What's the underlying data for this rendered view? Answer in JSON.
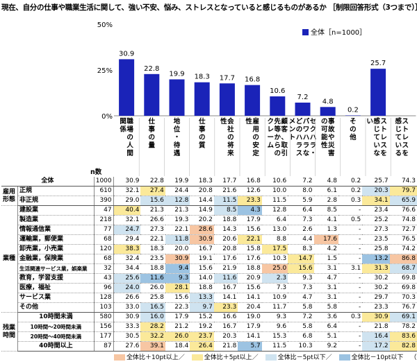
{
  "title": "現在、自分の仕事や職業生活に関して、強い不安、悩み、ストレスとなっていると感じるものがあるか ［制限回答形式（3つまで）］",
  "colors": {
    "bar": "#1a23b8",
    "hi10": "#f7c6a3",
    "hi5": "#fbe99a",
    "lo5": "#cfe3f0",
    "lo10": "#9cc3e2"
  },
  "chart_data": {
    "type": "bar",
    "title": "",
    "xlabel": "",
    "ylabel": "",
    "ylim": [
      0,
      50
    ],
    "yticks": [
      "0%",
      "25%",
      "50%"
    ],
    "grid": false,
    "legend": {
      "position": "top-right",
      "label": "全体［n=1000］"
    },
    "categories": [
      "職場の人間関係",
      "仕事の量",
      "地位・待遇",
      "仕事の質",
      "会社の将来性",
      "雇用の安定性",
      "顧客、取引先等からのクレーム",
      "セクハラ・パワハラなどのハラスメント",
      "事故や災害の可能性",
      "その他",
      "ストレスを感じていない",
      "ストレスを感じている"
    ],
    "series": [
      {
        "name": "全体［n=1000］",
        "values": [
          30.9,
          22.8,
          19.9,
          18.3,
          17.7,
          16.8,
          10.6,
          7.2,
          4.8,
          0.2,
          25.7,
          null
        ]
      }
    ]
  },
  "table": {
    "n_header": "n数",
    "categories": [
      "職場の人間関係",
      "仕事の量",
      "地位・待遇",
      "仕事の質",
      "会社の将来性",
      "雇用の安定性",
      "顧客、取引先等からのクレーム",
      "セクハラ・パワハラなどのハラスメント",
      "事故や災害の可能性",
      "その他",
      "ストレスを感じていない",
      "ストレスを感じている"
    ],
    "groups": [
      {
        "name": "",
        "rows": [
          {
            "label": "全体",
            "n": "1000",
            "values": [
              "30.9",
              "22.8",
              "19.9",
              "18.3",
              "17.7",
              "16.8",
              "10.6",
              "7.2",
              "4.8",
              "0.2",
              "25.7",
              "74.3"
            ],
            "hl": [
              "",
              "",
              "",
              "",
              "",
              "",
              "",
              "",
              "",
              "",
              "",
              ""
            ]
          }
        ]
      },
      {
        "name": "雇用形態",
        "rows": [
          {
            "label": "正規",
            "n": "610",
            "values": [
              "32.1",
              "27.4",
              "24.4",
              "20.8",
              "21.6",
              "12.6",
              "10.0",
              "8.0",
              "6.1",
              "0.2",
              "20.3",
              "79.7"
            ],
            "hl": [
              "",
              "hi5",
              "",
              "",
              "",
              "",
              "",
              "",
              "",
              "",
              "lo5",
              "hi5"
            ]
          },
          {
            "label": "非正規",
            "n": "390",
            "values": [
              "29.0",
              "15.6",
              "12.8",
              "14.4",
              "11.5",
              "23.3",
              "11.5",
              "5.9",
              "2.8",
              "0.3",
              "34.1",
              "65.9"
            ],
            "hl": [
              "",
              "lo5",
              "lo5",
              "",
              "lo5",
              "hi5",
              "",
              "",
              "",
              "",
              "hi5",
              "lo5"
            ]
          }
        ]
      },
      {
        "name": "業種",
        "rows": [
          {
            "label": "建設業",
            "n": "47",
            "values": [
              "40.4",
              "21.3",
              "21.3",
              "14.9",
              "8.5",
              "4.3",
              "12.8",
              "6.4",
              "8.5",
              "-",
              "23.4",
              "76.6"
            ],
            "hl": [
              "hi5",
              "",
              "",
              "",
              "lo5",
              "lo10",
              "",
              "",
              "",
              "",
              "",
              ""
            ]
          },
          {
            "label": "製造業",
            "n": "218",
            "values": [
              "32.1",
              "26.6",
              "19.3",
              "20.2",
              "18.8",
              "17.9",
              "6.4",
              "7.3",
              "4.1",
              "0.5",
              "25.2",
              "74.8"
            ],
            "hl": [
              "",
              "",
              "",
              "",
              "",
              "",
              "",
              "",
              "",
              "",
              "",
              ""
            ]
          },
          {
            "label": "情報通信業",
            "n": "77",
            "values": [
              "24.7",
              "27.3",
              "22.1",
              "28.6",
              "14.3",
              "15.6",
              "13.0",
              "2.6",
              "1.3",
              "-",
              "27.3",
              "72.7"
            ],
            "hl": [
              "lo5",
              "",
              "",
              "hi10",
              "",
              "",
              "",
              "",
              "",
              "",
              "",
              ""
            ]
          },
          {
            "label": "運輸業，郵便業",
            "n": "68",
            "values": [
              "29.4",
              "22.1",
              "11.8",
              "30.9",
              "20.6",
              "22.1",
              "8.8",
              "4.4",
              "17.6",
              "-",
              "23.5",
              "76.5"
            ],
            "hl": [
              "",
              "",
              "lo5",
              "hi10",
              "",
              "hi5",
              "",
              "",
              "hi10",
              "",
              "",
              ""
            ]
          },
          {
            "label": "卸売業，小売業",
            "n": "120",
            "values": [
              "38.3",
              "18.3",
              "20.0",
              "16.7",
              "20.8",
              "15.8",
              "17.5",
              "8.3",
              "4.2",
              "-",
              "25.8",
              "74.2"
            ],
            "hl": [
              "hi5",
              "",
              "",
              "",
              "",
              "",
              "hi5",
              "",
              "",
              "",
              "",
              ""
            ]
          },
          {
            "label": "金融業，保険業",
            "n": "68",
            "values": [
              "32.4",
              "23.5",
              "30.9",
              "19.1",
              "17.6",
              "17.6",
              "10.3",
              "14.7",
              "1.5",
              "-",
              "13.2",
              "86.8"
            ],
            "hl": [
              "",
              "",
              "hi10",
              "",
              "",
              "",
              "",
              "hi5",
              "",
              "",
              "lo10",
              "hi10"
            ]
          },
          {
            "label": "生活関連サービス業，娯楽業",
            "n": "32",
            "values": [
              "34.4",
              "18.8",
              "9.4",
              "15.6",
              "21.9",
              "18.8",
              "25.0",
              "15.6",
              "3.1",
              "3.1",
              "31.3",
              "68.7"
            ],
            "hl": [
              "",
              "",
              "lo10",
              "",
              "",
              "",
              "hi10",
              "hi5",
              "",
              "",
              "hi5",
              "lo5"
            ]
          },
          {
            "label": "教育，学習支援",
            "n": "43",
            "values": [
              "25.6",
              "11.6",
              "9.3",
              "14.0",
              "11.6",
              "20.9",
              "2.3",
              "9.3",
              "4.7",
              "-",
              "30.2",
              "69.8"
            ],
            "hl": [
              "lo5",
              "lo10",
              "lo10",
              "",
              "lo5",
              "",
              "lo5",
              "",
              "",
              "",
              "",
              ""
            ]
          },
          {
            "label": "医療，福祉",
            "n": "96",
            "values": [
              "24.0",
              "26.0",
              "28.1",
              "18.8",
              "16.7",
              "15.6",
              "7.3",
              "7.3",
              "3.1",
              "-",
              "30.2",
              "69.8"
            ],
            "hl": [
              "lo5",
              "",
              "hi5",
              "",
              "",
              "",
              "",
              "",
              "",
              "",
              "",
              ""
            ]
          },
          {
            "label": "サービス業",
            "n": "128",
            "values": [
              "26.6",
              "25.8",
              "15.6",
              "13.3",
              "14.1",
              "14.1",
              "10.9",
              "4.7",
              "3.1",
              "-",
              "29.7",
              "70.3"
            ],
            "hl": [
              "",
              "",
              "",
              "lo5",
              "",
              "",
              "",
              "",
              "",
              "",
              "",
              ""
            ]
          },
          {
            "label": "その他",
            "n": "103",
            "values": [
              "33.0",
              "16.5",
              "22.3",
              "9.7",
              "23.3",
              "20.4",
              "11.7",
              "5.8",
              "5.8",
              "-",
              "23.3",
              "76.7"
            ],
            "hl": [
              "",
              "lo5",
              "",
              "lo5",
              "hi5",
              "",
              "",
              "",
              "",
              "",
              "",
              ""
            ]
          }
        ]
      },
      {
        "name": "残業時間",
        "rows": [
          {
            "label": "10時間未満",
            "n": "580",
            "values": [
              "30.9",
              "16.0",
              "17.9",
              "15.2",
              "16.6",
              "19.0",
              "9.3",
              "7.2",
              "3.6",
              "0.3",
              "30.9",
              "69.1"
            ],
            "hl": [
              "",
              "lo5",
              "",
              "",
              "",
              "",
              "",
              "",
              "",
              "",
              "hi5",
              "lo5"
            ]
          },
          {
            "label": "10時間～20時間未満",
            "n": "156",
            "values": [
              "33.3",
              "28.2",
              "21.2",
              "19.2",
              "16.7",
              "17.9",
              "9.6",
              "5.8",
              "6.4",
              "-",
              "21.8",
              "78.2"
            ],
            "hl": [
              "",
              "hi5",
              "",
              "",
              "",
              "",
              "",
              "",
              "",
              "",
              "",
              ""
            ]
          },
          {
            "label": "20時間～40時間未満",
            "n": "177",
            "values": [
              "30.5",
              "32.2",
              "26.0",
              "23.7",
              "20.3",
              "14.1",
              "15.3",
              "6.8",
              "5.1",
              "-",
              "16.4",
              "83.6"
            ],
            "hl": [
              "",
              "hi5",
              "hi5",
              "hi5",
              "",
              "",
              "",
              "",
              "",
              "",
              "lo5",
              "hi5"
            ]
          },
          {
            "label": "40時間以上",
            "n": "87",
            "values": [
              "27.6",
              "39.1",
              "18.4",
              "26.4",
              "21.8",
              "5.7",
              "11.5",
              "10.3",
              "9.2",
              "-",
              "17.2",
              "82.8"
            ],
            "hl": [
              "",
              "hi10",
              "",
              "hi5",
              "",
              "lo10",
              "",
              "",
              "",
              "",
              "lo5",
              "hi5"
            ]
          }
        ]
      }
    ]
  },
  "legend_bottom": {
    "hi10": "全体比＋10pt以上／",
    "hi5": "全体比＋5pt以上／",
    "lo5": "全体比－5pt以下／",
    "lo10": "全体比－10pt以下",
    "unit": "（%）"
  }
}
